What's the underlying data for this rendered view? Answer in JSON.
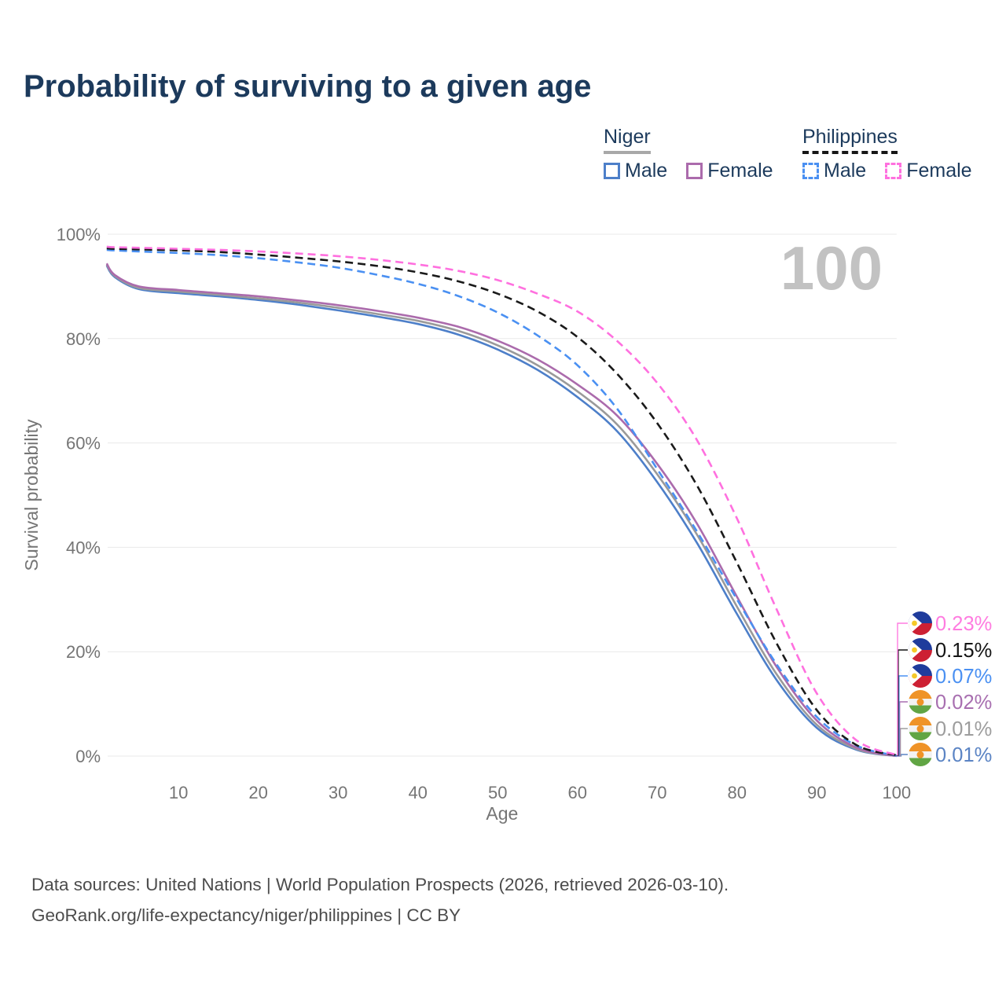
{
  "title": "Probability of surviving to a given age",
  "legend": {
    "niger": {
      "label": "Niger",
      "male_label": "Male",
      "female_label": "Female"
    },
    "philippines": {
      "label": "Philippines",
      "male_label": "Male",
      "female_label": "Female"
    }
  },
  "footer": {
    "line1": "Data sources: United Nations | World Population Prospects (2026, retrieved 2026-03-10).",
    "line2": "GeoRank.org/life-expectancy/niger/philippines | CC BY"
  },
  "chart_data": {
    "type": "line",
    "title": "Probability of surviving to a given age",
    "xlabel": "Age",
    "ylabel": "Survival probability",
    "xlim": [
      0,
      100
    ],
    "ylim": [
      0,
      100
    ],
    "grid": "horizontal",
    "age_indicator": "100",
    "xticks": [
      {
        "value": 10,
        "label": "10"
      },
      {
        "value": 20,
        "label": "20"
      },
      {
        "value": 30,
        "label": "30"
      },
      {
        "value": 40,
        "label": "40"
      },
      {
        "value": 50,
        "label": "50"
      },
      {
        "value": 60,
        "label": "60"
      },
      {
        "value": 70,
        "label": "70"
      },
      {
        "value": 80,
        "label": "80"
      },
      {
        "value": 90,
        "label": "90"
      },
      {
        "value": 100,
        "label": "100"
      }
    ],
    "yticks": [
      {
        "value": 0,
        "label": "0%"
      },
      {
        "value": 20,
        "label": "20%"
      },
      {
        "value": 40,
        "label": "40%"
      },
      {
        "value": 60,
        "label": "60%"
      },
      {
        "value": 80,
        "label": "80%"
      },
      {
        "value": 100,
        "label": "100%"
      }
    ],
    "x": [
      1,
      2,
      5,
      10,
      15,
      20,
      25,
      30,
      35,
      40,
      45,
      50,
      55,
      60,
      65,
      70,
      75,
      80,
      85,
      90,
      95,
      100
    ],
    "series": [
      {
        "id": "niger-male",
        "name": "Niger Male",
        "country": "niger",
        "sex": "male",
        "line_style": "solid",
        "color": "#4d7fc9",
        "label_color": "#5b84c4",
        "end_label": "0.01%",
        "label_row": 5,
        "values": [
          94.0,
          91.8,
          89.5,
          88.7,
          88.1,
          87.4,
          86.5,
          85.4,
          84.2,
          82.8,
          80.8,
          77.9,
          74.0,
          68.8,
          62.2,
          52.5,
          40.8,
          27.2,
          14.5,
          5.4,
          1.2,
          0.01
        ]
      },
      {
        "id": "niger-both",
        "name": "Niger Both sexes",
        "country": "niger",
        "sex": "both",
        "line_style": "solid",
        "color": "#9a9a9a",
        "label_color": "#9d9d9d",
        "end_label": "0.01%",
        "label_row": 4,
        "values": [
          94.2,
          92.0,
          89.7,
          89.0,
          88.4,
          87.7,
          86.9,
          85.9,
          84.7,
          83.4,
          81.5,
          78.7,
          74.9,
          69.9,
          63.5,
          54.0,
          42.4,
          28.6,
          15.6,
          6.0,
          1.35,
          0.01
        ]
      },
      {
        "id": "niger-female",
        "name": "Niger Female",
        "country": "niger",
        "sex": "female",
        "line_style": "solid",
        "color": "#ab6bac",
        "label_color": "#a86fb0",
        "end_label": "0.02%",
        "label_row": 3,
        "values": [
          94.4,
          92.2,
          90.0,
          89.3,
          88.7,
          88.1,
          87.3,
          86.4,
          85.3,
          84.0,
          82.3,
          79.6,
          76.0,
          71.2,
          65.2,
          56.0,
          44.5,
          30.5,
          17.0,
          6.8,
          1.6,
          0.02
        ]
      },
      {
        "id": "philippines-male",
        "name": "Philippines Male",
        "country": "philippines",
        "sex": "male",
        "line_style": "dashed",
        "color": "#4a90f2",
        "label_color": "#4a90f2",
        "end_label": "0.07%",
        "label_row": 2,
        "values": [
          97.0,
          96.9,
          96.7,
          96.4,
          96.0,
          95.4,
          94.6,
          93.6,
          92.2,
          90.5,
          88.2,
          85.0,
          80.6,
          74.9,
          66.5,
          55.0,
          43.0,
          30.0,
          17.5,
          7.5,
          2.0,
          0.07
        ]
      },
      {
        "id": "philippines-both",
        "name": "Philippines Both sexes",
        "country": "philippines",
        "sex": "both",
        "line_style": "dashed",
        "color": "#1a1a1a",
        "label_color": "#141414",
        "end_label": "0.15%",
        "label_row": 1,
        "values": [
          97.3,
          97.2,
          97.1,
          96.9,
          96.6,
          96.1,
          95.5,
          94.8,
          93.9,
          92.7,
          91.0,
          88.6,
          85.2,
          80.3,
          73.2,
          63.8,
          51.8,
          37.0,
          21.5,
          8.8,
          2.1,
          0.15
        ]
      },
      {
        "id": "philippines-female",
        "name": "Philippines Female",
        "country": "philippines",
        "sex": "female",
        "line_style": "dashed",
        "color": "#ff70df",
        "label_color": "#ff7ce0",
        "end_label": "0.23%",
        "label_row": 0,
        "values": [
          97.6,
          97.5,
          97.4,
          97.2,
          97.0,
          96.7,
          96.3,
          95.8,
          95.1,
          94.2,
          93.0,
          91.2,
          88.6,
          85.2,
          79.5,
          71.5,
          60.5,
          45.5,
          28.0,
          12.0,
          3.0,
          0.23
        ]
      }
    ],
    "flags": {
      "philippines": {
        "blue": "#1f3c9c",
        "red": "#cd2033",
        "white": "#ffffff",
        "sun": "#f5c928"
      },
      "niger": {
        "orange": "#ef9327",
        "white": "#f2f2f2",
        "green": "#61a544"
      }
    }
  },
  "theme": {
    "title_color": "#1c3a5c",
    "tick_color": "#757575",
    "grid_color": "#e9e9e9",
    "watermark_color": "#c2c2c2",
    "footer_color": "#4c4c4c"
  }
}
